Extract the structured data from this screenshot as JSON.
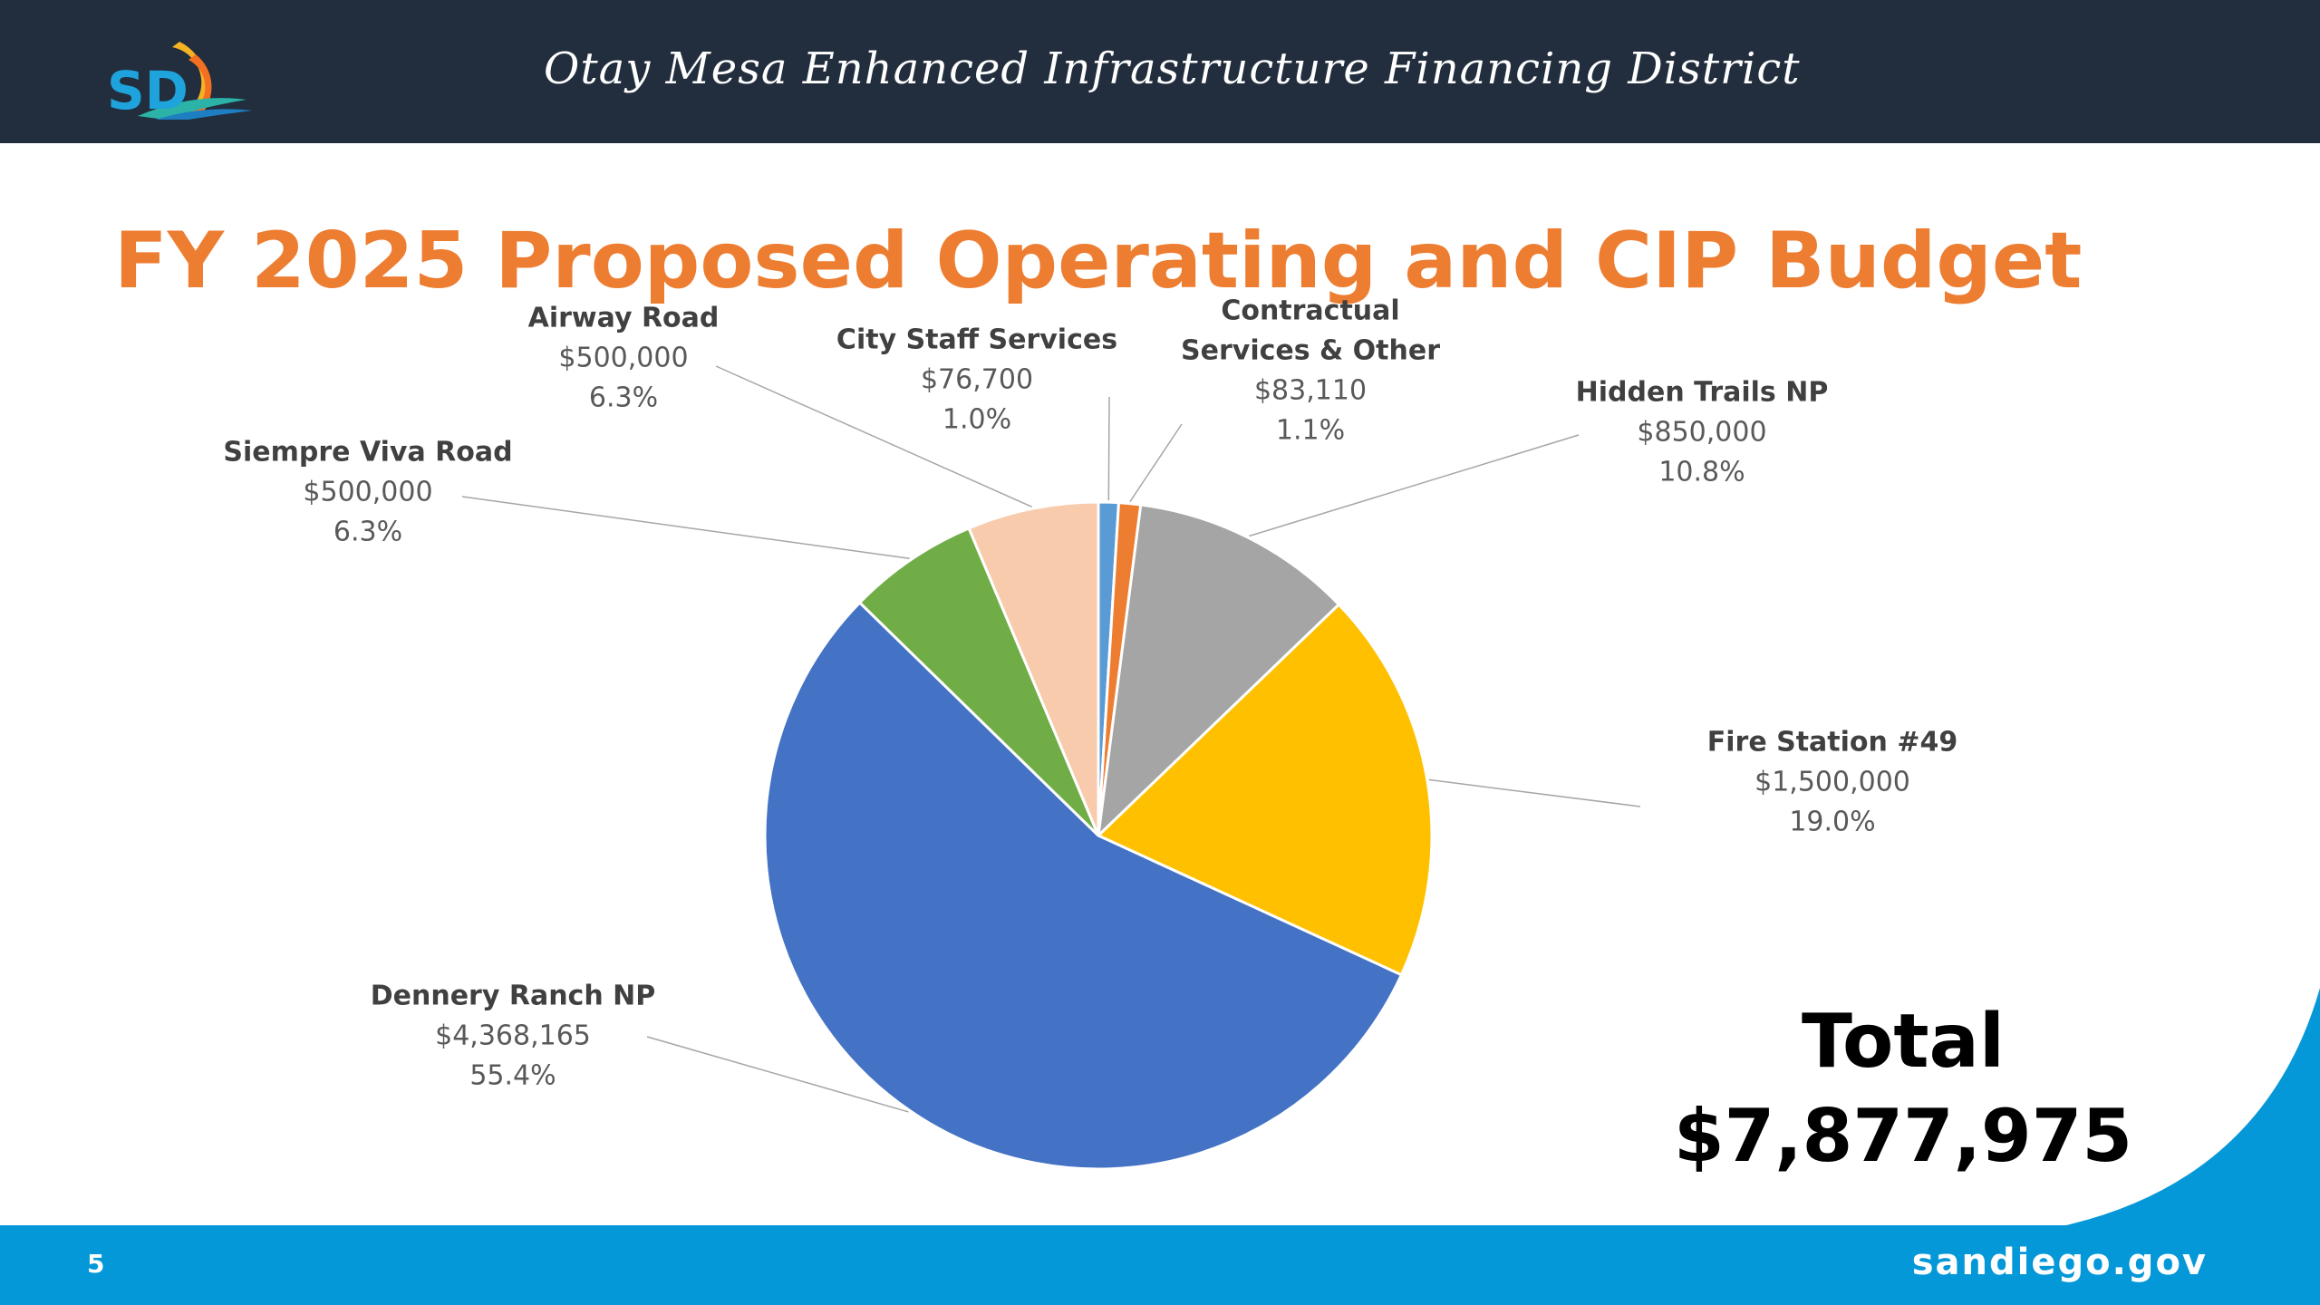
{
  "header": {
    "logo_text": "SD",
    "title": "Otay Mesa Enhanced Infrastructure Financing District"
  },
  "slide": {
    "title": "FY 2025 Proposed Operating and CIP Budget",
    "total_label": "Total",
    "total_value": "$7,877,975"
  },
  "footer": {
    "page_number": "5",
    "site": "sandiego.gov"
  },
  "colors": {
    "header_bg": "#222e3d",
    "title_orange": "#ed7d31",
    "footer_blue": "#0598d8"
  },
  "chart_data": {
    "type": "pie",
    "title": "",
    "total": 7877975,
    "slices": [
      {
        "name": "City Staff Services",
        "name_lines": [
          "City Staff Services"
        ],
        "value": 76700,
        "amount": "$76,700",
        "percent": "1.0%",
        "color": "#5b9bd5"
      },
      {
        "name": "Contractual Services & Other",
        "name_lines": [
          "Contractual",
          "Services & Other"
        ],
        "value": 83110,
        "amount": "$83,110",
        "percent": "1.1%",
        "color": "#ed7d31"
      },
      {
        "name": "Hidden Trails NP",
        "name_lines": [
          "Hidden Trails NP"
        ],
        "value": 850000,
        "amount": "$850,000",
        "percent": "10.8%",
        "color": "#a5a5a5"
      },
      {
        "name": "Fire Station #49",
        "name_lines": [
          "Fire Station #49"
        ],
        "value": 1500000,
        "amount": "$1,500,000",
        "percent": "19.0%",
        "color": "#ffc000"
      },
      {
        "name": "Dennery Ranch NP",
        "name_lines": [
          "Dennery Ranch NP"
        ],
        "value": 4368165,
        "amount": "$4,368,165",
        "percent": "55.4%",
        "color": "#4472c4"
      },
      {
        "name": "Siempre Viva Road",
        "name_lines": [
          "Siempre Viva Road"
        ],
        "value": 500000,
        "amount": "$500,000",
        "percent": "6.3%",
        "color": "#70ad47"
      },
      {
        "name": "Airway Road",
        "name_lines": [
          "Airway Road"
        ],
        "value": 500000,
        "amount": "$500,000",
        "percent": "6.3%",
        "color": "#f8cbad"
      }
    ]
  }
}
